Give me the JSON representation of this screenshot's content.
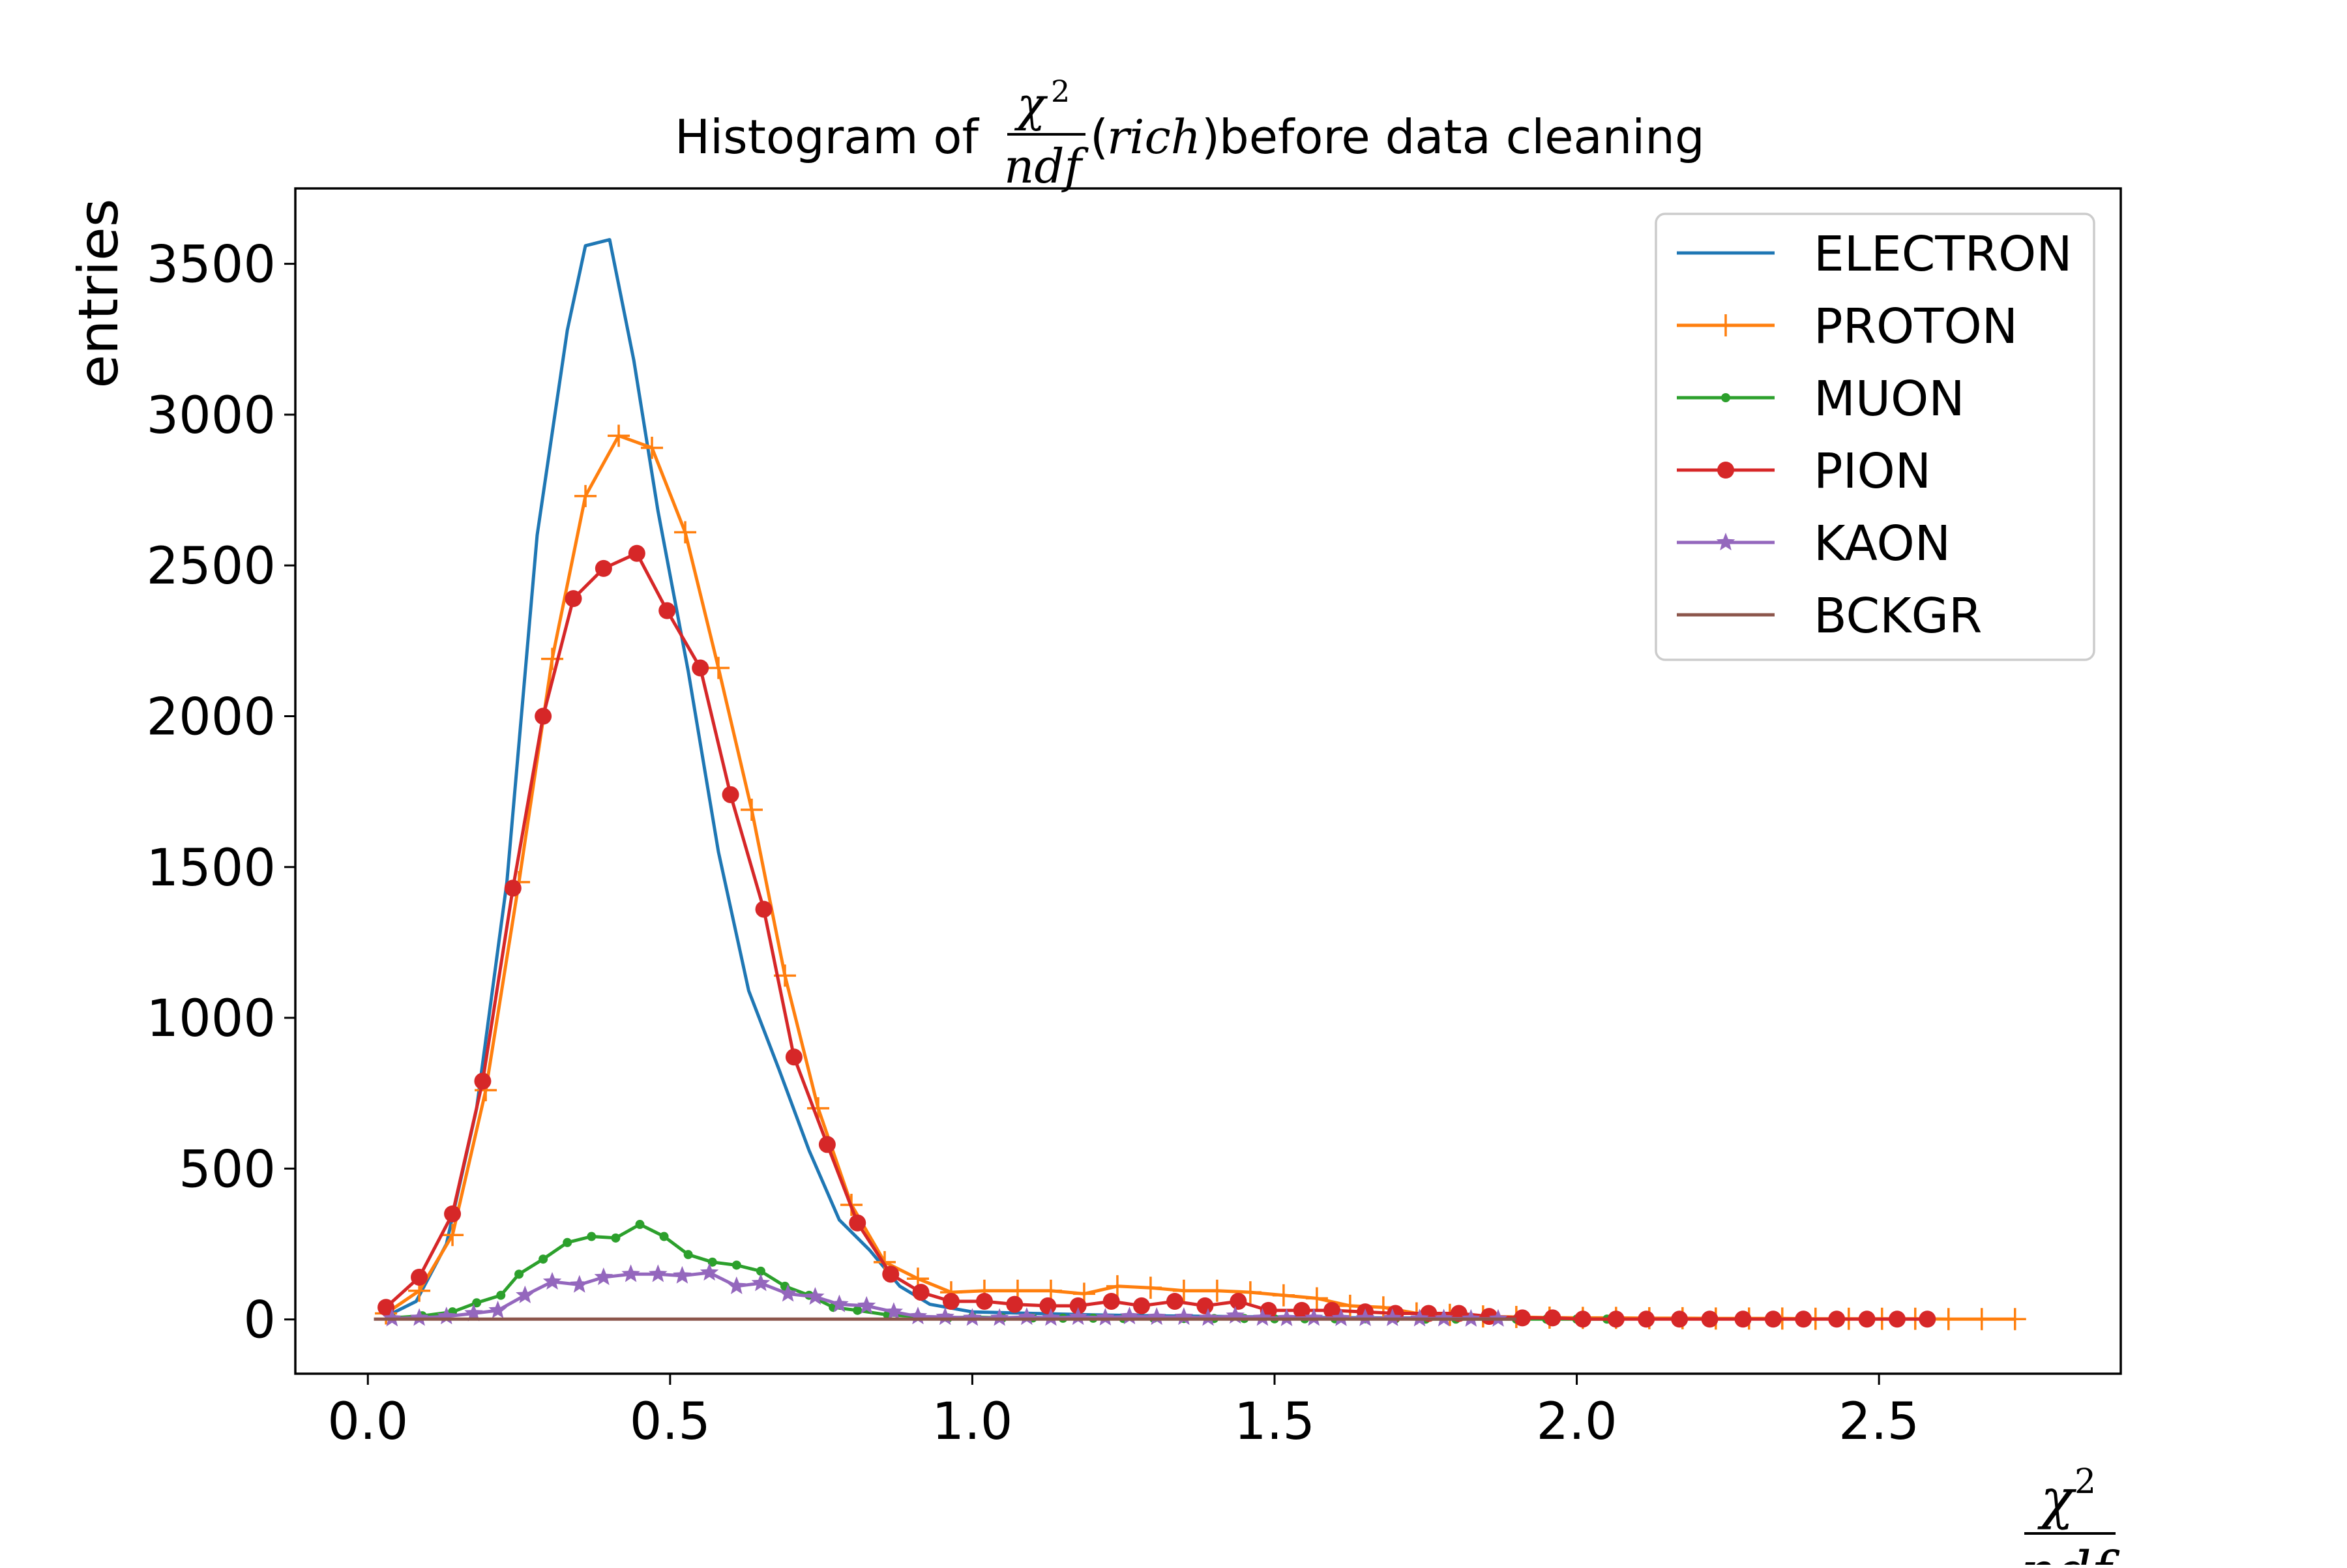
{
  "chart_data": {
    "type": "line",
    "title": {
      "prefix": "Histogram of ",
      "frac_numerator": "χ",
      "frac_power": "2",
      "frac_denominator": "ndf",
      "paren_open": "(",
      "paren_var": "rich",
      "paren_close": ")",
      "suffix": " before data cleaning"
    },
    "xlabel": {
      "frac_numerator": "χ",
      "frac_power": "2",
      "frac_denominator": "ndf"
    },
    "ylabel": "entries",
    "xlim": [
      -0.12,
      2.9
    ],
    "ylim": [
      -180,
      3750
    ],
    "xticks": [
      0.0,
      0.5,
      1.0,
      1.5,
      2.0,
      2.5
    ],
    "xtick_labels": [
      "0.0",
      "0.5",
      "1.0",
      "1.5",
      "2.0",
      "2.5"
    ],
    "yticks": [
      0,
      500,
      1000,
      1500,
      2000,
      2500,
      3000,
      3500
    ],
    "ytick_labels": [
      "0",
      "500",
      "1000",
      "1500",
      "2000",
      "2500",
      "3000",
      "3500"
    ],
    "grid": false,
    "legend_position": "top-right",
    "series": [
      {
        "name": "ELECTRON",
        "color": "#1f77b4",
        "marker": "none",
        "x": [
          0.03,
          0.08,
          0.13,
          0.18,
          0.23,
          0.28,
          0.33,
          0.36,
          0.4,
          0.44,
          0.48,
          0.53,
          0.58,
          0.63,
          0.68,
          0.73,
          0.78,
          0.83,
          0.88,
          0.93,
          1.0,
          1.1,
          1.2,
          1.3,
          1.4,
          1.5,
          1.6,
          1.7,
          1.8,
          1.9,
          2.0
        ],
        "values": [
          10,
          60,
          250,
          700,
          1450,
          2600,
          3280,
          3560,
          3580,
          3180,
          2680,
          2150,
          1550,
          1090,
          830,
          560,
          330,
          230,
          110,
          50,
          25,
          20,
          15,
          12,
          10,
          8,
          6,
          5,
          4,
          3,
          2
        ]
      },
      {
        "name": "PROTON",
        "color": "#ff7f0e",
        "marker": "plus",
        "x": [
          0.03,
          0.085,
          0.14,
          0.195,
          0.25,
          0.305,
          0.36,
          0.415,
          0.47,
          0.525,
          0.58,
          0.635,
          0.69,
          0.745,
          0.8,
          0.855,
          0.91,
          0.965,
          1.02,
          1.075,
          1.13,
          1.185,
          1.24,
          1.295,
          1.35,
          1.405,
          1.46,
          1.515,
          1.57,
          1.625,
          1.68,
          1.735,
          1.79,
          1.845,
          1.9,
          1.955,
          2.01,
          2.065,
          2.12,
          2.175,
          2.23,
          2.285,
          2.34,
          2.395,
          2.45,
          2.505,
          2.56,
          2.615,
          2.67,
          2.725
        ],
        "values": [
          20,
          95,
          280,
          760,
          1450,
          2190,
          2730,
          2930,
          2890,
          2610,
          2160,
          1690,
          1140,
          700,
          380,
          190,
          135,
          90,
          95,
          95,
          95,
          85,
          110,
          105,
          95,
          95,
          90,
          80,
          70,
          45,
          40,
          20,
          15,
          10,
          8,
          6,
          5,
          5,
          4,
          4,
          3,
          3,
          3,
          2,
          2,
          2,
          2,
          1,
          1,
          1
        ]
      },
      {
        "name": "MUON",
        "color": "#2ca02c",
        "marker": "point",
        "x": [
          0.04,
          0.09,
          0.14,
          0.18,
          0.22,
          0.25,
          0.29,
          0.33,
          0.37,
          0.41,
          0.45,
          0.49,
          0.53,
          0.57,
          0.61,
          0.65,
          0.69,
          0.73,
          0.77,
          0.81,
          0.86,
          0.91,
          0.96,
          1.0,
          1.05,
          1.1,
          1.15,
          1.2,
          1.25,
          1.3,
          1.35,
          1.4,
          1.45,
          1.5,
          1.55,
          1.6,
          1.65,
          1.7,
          1.75,
          1.8,
          1.85,
          1.9,
          1.95,
          2.0,
          2.05
        ],
        "values": [
          5,
          12,
          25,
          55,
          80,
          150,
          200,
          255,
          275,
          270,
          315,
          275,
          215,
          190,
          180,
          160,
          110,
          80,
          40,
          30,
          15,
          10,
          5,
          8,
          5,
          5,
          4,
          4,
          3,
          4,
          3,
          3,
          3,
          2,
          2,
          2,
          2,
          2,
          1,
          1,
          1,
          1,
          1,
          1,
          1
        ]
      },
      {
        "name": "PION",
        "color": "#d62728",
        "marker": "circle",
        "x": [
          0.03,
          0.085,
          0.14,
          0.19,
          0.24,
          0.29,
          0.34,
          0.39,
          0.445,
          0.495,
          0.55,
          0.6,
          0.655,
          0.705,
          0.76,
          0.81,
          0.865,
          0.915,
          0.965,
          1.02,
          1.07,
          1.125,
          1.175,
          1.23,
          1.28,
          1.335,
          1.385,
          1.44,
          1.49,
          1.545,
          1.595,
          1.65,
          1.7,
          1.755,
          1.805,
          1.855,
          1.91,
          1.96,
          2.01,
          2.065,
          2.115,
          2.17,
          2.22,
          2.275,
          2.325,
          2.375,
          2.43,
          2.48,
          2.53,
          2.58
        ],
        "values": [
          40,
          140,
          350,
          790,
          1430,
          2000,
          2390,
          2490,
          2540,
          2350,
          2160,
          1740,
          1360,
          870,
          580,
          320,
          150,
          90,
          60,
          60,
          50,
          45,
          45,
          60,
          45,
          60,
          45,
          60,
          30,
          30,
          30,
          25,
          20,
          20,
          20,
          10,
          5,
          5,
          1,
          1,
          1,
          1,
          1,
          1,
          1,
          1,
          1,
          1,
          1,
          1
        ]
      },
      {
        "name": "KAON",
        "color": "#9467bd",
        "marker": "star",
        "x": [
          0.04,
          0.085,
          0.13,
          0.175,
          0.215,
          0.26,
          0.305,
          0.35,
          0.39,
          0.435,
          0.48,
          0.52,
          0.565,
          0.61,
          0.65,
          0.695,
          0.74,
          0.78,
          0.825,
          0.87,
          0.91,
          0.955,
          1.0,
          1.045,
          1.09,
          1.13,
          1.175,
          1.22,
          1.26,
          1.305,
          1.35,
          1.39,
          1.435,
          1.48,
          1.52,
          1.565,
          1.61,
          1.65,
          1.695,
          1.74,
          1.78,
          1.825,
          1.87
        ],
        "values": [
          3,
          5,
          10,
          20,
          30,
          80,
          125,
          115,
          140,
          150,
          150,
          145,
          155,
          110,
          120,
          85,
          75,
          50,
          45,
          25,
          10,
          8,
          5,
          5,
          8,
          5,
          8,
          6,
          10,
          8,
          8,
          5,
          12,
          5,
          4,
          5,
          4,
          4,
          4,
          3,
          3,
          2,
          2
        ]
      },
      {
        "name": "BCKGR",
        "color": "#8c564b",
        "marker": "none",
        "x": [
          0.01,
          0.5,
          1.0,
          1.5,
          1.9
        ],
        "values": [
          1,
          1,
          1,
          1,
          1
        ]
      }
    ]
  }
}
